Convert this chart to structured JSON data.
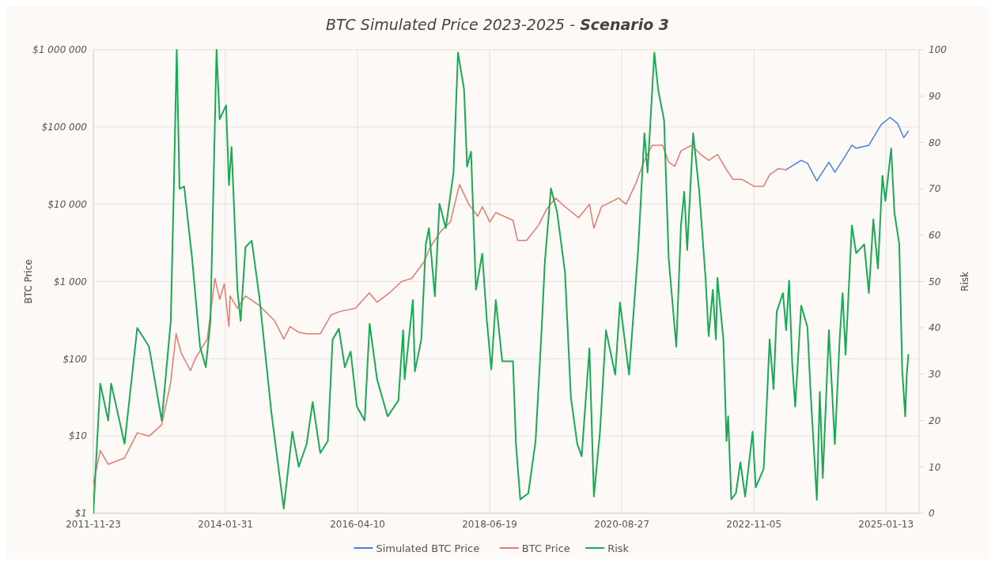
{
  "chart_data": {
    "type": "line",
    "title": "BTC Simulated Price 2023-2025 - Scenario 3",
    "ylabel": "BTC Price",
    "y2label": "Risk",
    "log": "y",
    "grid": true,
    "legend": "bottom",
    "xlim": [
      "2011-11-23",
      "2025-08-01"
    ],
    "xticks": [
      "2011-11-23",
      "2014-01-31",
      "2016-04-10",
      "2018-06-19",
      "2020-08-27",
      "2022-11-05",
      "2025-01-13"
    ],
    "ylim": [
      1,
      1000000
    ],
    "yticks": [
      {
        "value": 1,
        "label": "$1"
      },
      {
        "value": 10,
        "label": "$10"
      },
      {
        "value": 100,
        "label": "$100"
      },
      {
        "value": 1000,
        "label": "$1 000"
      },
      {
        "value": 10000,
        "label": "$10 000"
      },
      {
        "value": 100000,
        "label": "$100 000"
      },
      {
        "value": 1000000,
        "label": "$1 000 000"
      }
    ],
    "y2lim": [
      0,
      100
    ],
    "y2ticks": [
      0,
      10,
      20,
      30,
      40,
      50,
      60,
      70,
      80,
      90,
      100
    ],
    "series": [
      {
        "name": "Simulated BTC Price",
        "color": "#4a7fe0",
        "x": [
          "2023-05-19",
          "2023-08-18",
          "2023-09-25",
          "2023-11-21",
          "2024-02-02",
          "2024-03-09",
          "2024-04-25",
          "2024-06-20",
          "2024-07-16",
          "2024-10-01",
          "2024-12-14",
          "2025-02-07",
          "2025-03-24",
          "2025-04-30",
          "2025-05-28"
        ],
        "values": [
          28000,
          37000,
          34000,
          20000,
          35000,
          26000,
          37000,
          58000,
          53000,
          58000,
          107000,
          133000,
          111000,
          73000,
          88000
        ]
      },
      {
        "name": "BTC Price",
        "color": "#e07b6f",
        "x": [
          "2011-11-23",
          "2012-01-04",
          "2012-02-21",
          "2012-05-30",
          "2012-08-15",
          "2012-10-27",
          "2013-01-10",
          "2013-03-05",
          "2013-04-07",
          "2013-05-07",
          "2013-07-03",
          "2013-08-01",
          "2013-10-13",
          "2013-11-28",
          "2013-12-27",
          "2014-01-24",
          "2014-02-21",
          "2014-02-28",
          "2014-04-14",
          "2014-06-01",
          "2014-08-24",
          "2014-11-25",
          "2015-01-19",
          "2015-02-26",
          "2015-04-20",
          "2015-06-07",
          "2015-08-28",
          "2015-11-02",
          "2015-12-27",
          "2016-03-27",
          "2016-06-20",
          "2016-08-06",
          "2016-10-19",
          "2017-01-02",
          "2017-03-04",
          "2017-05-18",
          "2017-06-25",
          "2017-08-28",
          "2017-10-24",
          "2017-12-18",
          "2018-02-12",
          "2018-04-08",
          "2018-05-05",
          "2018-06-20",
          "2018-07-26",
          "2018-11-07",
          "2018-12-05",
          "2019-01-28",
          "2019-04-12",
          "2019-05-28",
          "2019-07-22",
          "2019-09-18",
          "2019-12-09",
          "2020-02-13",
          "2020-03-11",
          "2020-04-26",
          "2020-08-07",
          "2020-09-22",
          "2020-11-17",
          "2021-01-11",
          "2021-02-27",
          "2021-05-01",
          "2021-06-07",
          "2021-07-14",
          "2021-08-20",
          "2021-10-24",
          "2021-12-18",
          "2022-02-04",
          "2022-03-29",
          "2022-05-23",
          "2022-07-01",
          "2022-08-25",
          "2022-11-07",
          "2023-01-02",
          "2023-02-08",
          "2023-04-02",
          "2023-05-19"
        ],
        "values": [
          2.4,
          6.5,
          4.3,
          5.2,
          11,
          10,
          14,
          49,
          210,
          120,
          70,
          100,
          180,
          1100,
          590,
          930,
          260,
          650,
          450,
          650,
          490,
          310,
          180,
          260,
          220,
          210,
          210,
          370,
          410,
          450,
          710,
          540,
          710,
          1000,
          1100,
          1800,
          2800,
          4500,
          5900,
          18000,
          10000,
          7000,
          9300,
          5900,
          7800,
          6200,
          3400,
          3400,
          5400,
          8500,
          12000,
          9300,
          6700,
          10000,
          4900,
          9300,
          12000,
          10000,
          18000,
          37000,
          58000,
          58000,
          35000,
          31000,
          49000,
          58000,
          44000,
          37000,
          44000,
          28000,
          21000,
          21000,
          17000,
          17000,
          24000,
          29000,
          28000
        ]
      },
      {
        "name": "Risk",
        "color": "#1aaa55",
        "axis": "y2",
        "x": [
          "2011-11-23",
          "2012-01-04",
          "2012-02-21",
          "2012-03-10",
          "2012-05-30",
          "2012-08-15",
          "2012-10-25",
          "2013-01-10",
          "2013-03-06",
          "2013-03-25",
          "2013-04-11",
          "2013-04-28",
          "2013-05-26",
          "2013-07-13",
          "2013-08-30",
          "2013-10-04",
          "2013-11-01",
          "2013-12-08",
          "2013-12-27",
          "2014-02-04",
          "2014-02-21",
          "2014-03-09",
          "2014-04-14",
          "2014-05-03",
          "2014-06-01",
          "2014-07-09",
          "2014-08-24",
          "2014-11-06",
          "2015-01-19",
          "2015-03-12",
          "2015-04-20",
          "2015-06-07",
          "2015-07-13",
          "2015-08-28",
          "2015-10-13",
          "2015-11-11",
          "2015-12-19",
          "2016-01-24",
          "2016-02-28",
          "2016-04-06",
          "2016-05-23",
          "2016-06-22",
          "2016-08-06",
          "2016-10-09",
          "2016-12-13",
          "2017-01-11",
          "2017-01-20",
          "2017-03-11",
          "2017-03-23",
          "2017-05-01",
          "2017-05-28",
          "2017-06-16",
          "2017-07-22",
          "2017-08-19",
          "2017-09-26",
          "2017-11-12",
          "2017-12-09",
          "2018-01-15",
          "2018-02-02",
          "2018-02-26",
          "2018-03-28",
          "2018-05-05",
          "2018-06-02",
          "2018-06-29",
          "2018-07-26",
          "2018-09-03",
          "2018-11-07",
          "2018-11-25",
          "2018-12-21",
          "2019-02-08",
          "2019-03-24",
          "2019-04-30",
          "2019-05-19",
          "2019-06-25",
          "2019-08-01",
          "2019-09-18",
          "2019-10-15",
          "2019-10-24",
          "2019-12-01",
          "2019-12-28",
          "2020-02-13",
          "2020-03-11",
          "2020-04-17",
          "2020-05-23",
          "2020-07-18",
          "2020-08-16",
          "2020-10-10",
          "2020-12-05",
          "2021-01-11",
          "2021-01-30",
          "2021-03-12",
          "2021-04-04",
          "2021-05-10",
          "2021-06-07",
          "2021-07-23",
          "2021-08-20",
          "2021-09-09",
          "2021-09-27",
          "2021-11-02",
          "2021-12-09",
          "2022-01-16",
          "2022-02-04",
          "2022-03-01",
          "2022-03-20",
          "2022-03-29",
          "2022-05-04",
          "2022-05-23",
          "2022-06-02",
          "2022-06-21",
          "2022-07-19",
          "2022-08-15",
          "2022-09-13",
          "2022-10-28",
          "2022-11-16",
          "2023-01-03",
          "2023-01-20",
          "2023-02-08",
          "2023-03-04",
          "2023-03-23",
          "2023-04-30",
          "2023-05-19",
          "2023-06-06",
          "2023-06-25",
          "2023-07-13",
          "2023-08-18",
          "2023-09-25",
          "2023-10-14",
          "2023-11-21",
          "2023-12-09",
          "2023-12-27",
          "2024-02-02",
          "2024-03-09",
          "2024-04-07",
          "2024-04-25",
          "2024-05-13",
          "2024-06-20",
          "2024-07-16",
          "2024-09-03",
          "2024-10-01",
          "2024-10-28",
          "2024-11-25",
          "2024-12-22",
          "2025-01-09",
          "2025-02-13",
          "2025-03-05",
          "2025-04-03",
          "2025-04-21",
          "2025-05-09",
          "2025-05-18",
          "2025-05-28"
        ],
        "values": [
          0,
          28,
          20,
          28,
          15,
          40,
          36,
          20,
          41.5,
          71,
          100,
          70,
          70.5,
          55,
          36,
          31.5,
          41.5,
          100,
          85,
          88,
          70.8,
          79,
          48,
          41.5,
          57.4,
          58.8,
          46.8,
          21.5,
          1,
          17.6,
          10,
          15,
          24,
          13,
          15.6,
          37.5,
          39.8,
          31.5,
          34.9,
          23,
          20,
          40.9,
          28.9,
          20.9,
          24.3,
          39.5,
          28.9,
          46,
          30.6,
          37.5,
          58,
          61.5,
          46.8,
          66.8,
          61.5,
          73.5,
          99.4,
          91.4,
          74.8,
          78,
          48.2,
          56,
          41.5,
          31,
          46,
          32.8,
          32.8,
          15,
          3,
          4.3,
          15.6,
          40,
          54.2,
          70.1,
          65,
          52,
          31.5,
          24.9,
          15,
          12.3,
          35.6,
          3.6,
          17.6,
          39.5,
          29.9,
          45.5,
          29.9,
          57.4,
          82,
          73.5,
          99.4,
          91.4,
          84.8,
          54.9,
          35.9,
          62,
          69.4,
          56.8,
          82,
          69.4,
          50.8,
          38.2,
          48.2,
          37.5,
          50.8,
          37.5,
          15.6,
          20.9,
          3,
          4.3,
          11,
          3.6,
          17.6,
          5.6,
          9.6,
          22.2,
          37.5,
          26.8,
          43.5,
          47.5,
          39.5,
          50.2,
          32.2,
          23,
          44.8,
          40.2,
          26.2,
          2.9,
          26.2,
          7.6,
          39.5,
          14.9,
          37.5,
          47.5,
          34.2,
          62.1,
          56.1,
          58,
          47.5,
          63.4,
          52.8,
          72.8,
          67.4,
          78.7,
          64.8,
          58.1,
          30.9,
          20.9,
          29.6,
          34.2
        ]
      }
    ]
  }
}
